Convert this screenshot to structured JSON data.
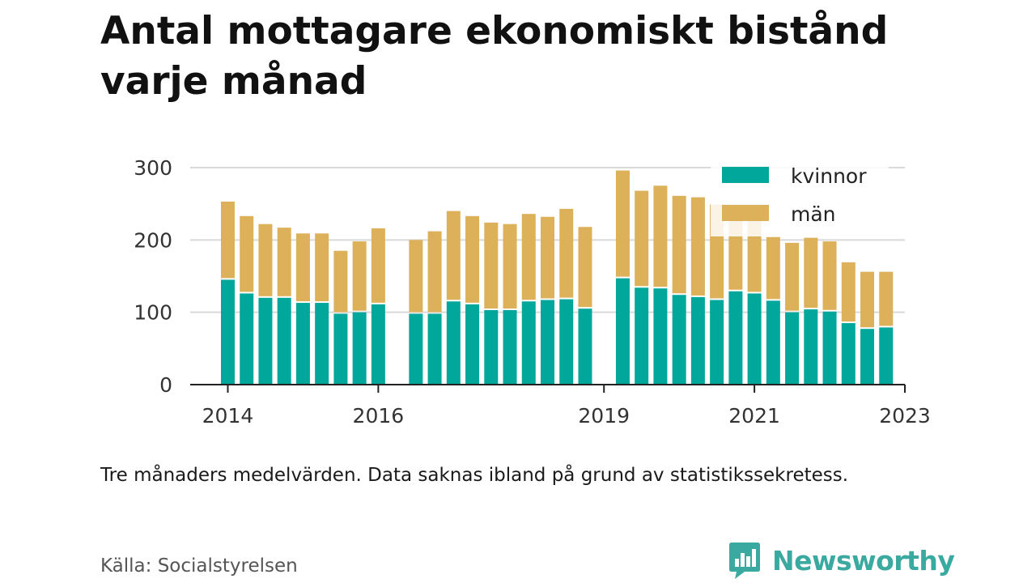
{
  "header": {
    "title": "Antal mottagare ekonomiskt bistånd varje månad"
  },
  "footer": {
    "note": "Tre månaders medelvärden. Data saknas ibland på grund av statistikssekretess.",
    "source": "Källa: Socialstyrelsen",
    "brand": "Newsworthy",
    "brand_icon": "bar-chart-speech-bubble-icon"
  },
  "colors": {
    "kvinnor": "#00a79a",
    "man": "#ddb05a",
    "grid": "#d9d9d9",
    "axis": "#222222",
    "brand": "#3aa9a0"
  },
  "chart_data": {
    "type": "bar",
    "stacked": true,
    "title": "Antal mottagare ekonomiskt bistånd varje månad",
    "xlabel": "",
    "ylabel": "",
    "ylim": [
      0,
      300
    ],
    "y_ticks": [
      0,
      100,
      200,
      300
    ],
    "x_tick_labels": [
      "2014",
      "2016",
      "2019",
      "2021",
      "2023"
    ],
    "x_range": [
      "2014-01",
      "2023-07"
    ],
    "grid": true,
    "legend_position": "top-right",
    "periods": [
      "2014-07",
      "2014-10",
      "2015-01",
      "2015-04",
      "2015-07",
      "2015-10",
      "2016-01",
      "2016-04",
      "2016-07",
      "2017-01",
      "2017-04",
      "2017-07",
      "2017-10",
      "2018-01",
      "2018-04",
      "2018-07",
      "2018-10",
      "2019-01",
      "2019-04",
      "2019-10",
      "2020-01",
      "2020-04",
      "2020-07",
      "2020-10",
      "2021-01",
      "2021-04",
      "2021-07",
      "2021-10",
      "2022-01",
      "2022-04",
      "2022-07",
      "2022-10",
      "2023-01",
      "2023-04"
    ],
    "series": [
      {
        "name": "kvinnor",
        "color": "#00a79a",
        "values": [
          145,
          126,
          120,
          120,
          113,
          113,
          98,
          100,
          111,
          98,
          98,
          115,
          111,
          103,
          103,
          115,
          117,
          118,
          105,
          147,
          134,
          133,
          124,
          121,
          117,
          129,
          126,
          116,
          100,
          104,
          101,
          85,
          77,
          79
        ]
      },
      {
        "name": "män",
        "color": "#ddb05a",
        "values": [
          108,
          107,
          102,
          97,
          96,
          96,
          87,
          98,
          105,
          102,
          114,
          125,
          122,
          121,
          119,
          121,
          115,
          125,
          113,
          149,
          134,
          142,
          137,
          138,
          132,
          115,
          102,
          88,
          96,
          99,
          97,
          84,
          79,
          77
        ]
      }
    ]
  }
}
